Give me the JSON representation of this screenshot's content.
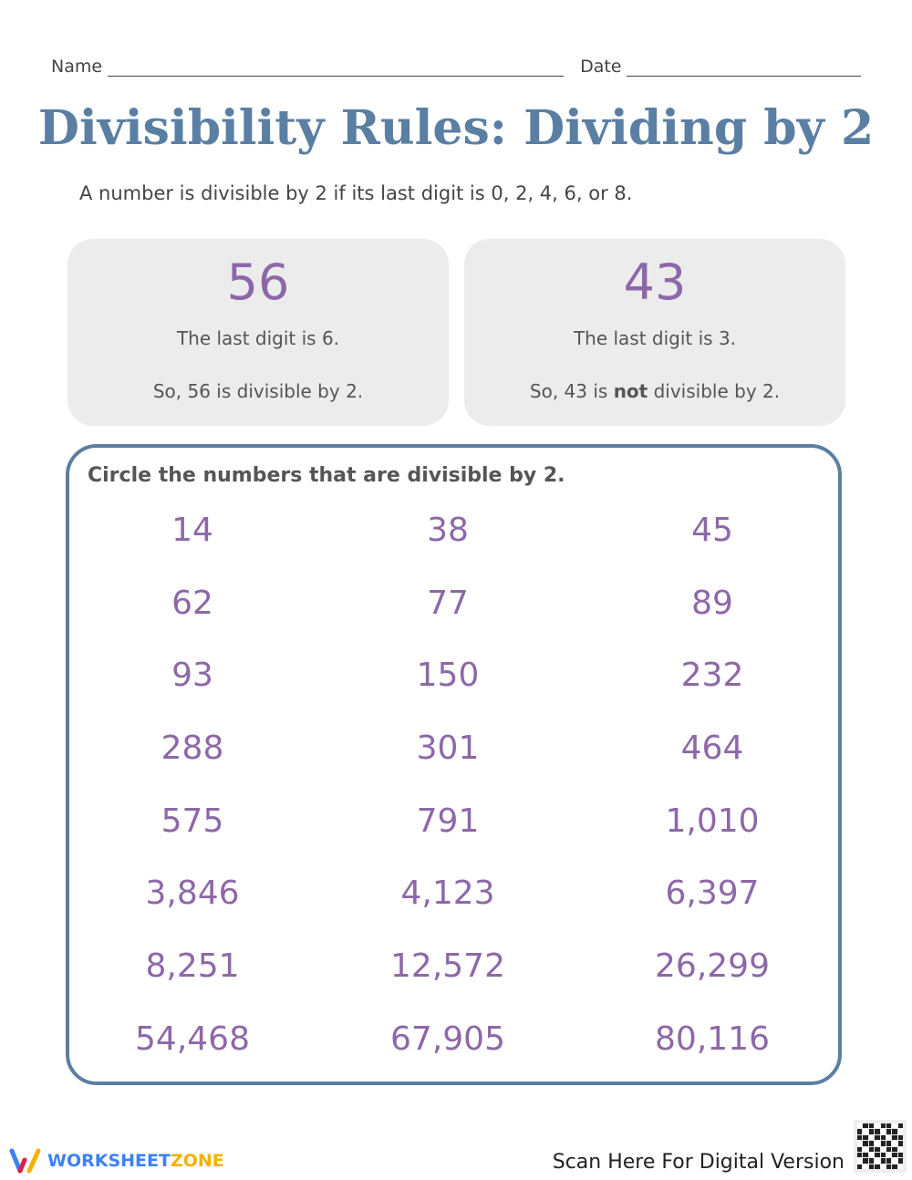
{
  "header": {
    "name_label": "Name",
    "date_label": "Date"
  },
  "title": "Divisibility Rules: Dividing by 2",
  "rule": "A number is divisible by 2 if its last digit is 0, 2, 4, 6, or 8.",
  "examples": [
    {
      "number": "56",
      "line1": "The last digit is 6.",
      "line2_pre": "So, 56 is ",
      "line2_bold": "",
      "line2_post": "divisible by 2."
    },
    {
      "number": "43",
      "line1": "The last digit is 3.",
      "line2_pre": "So, 43 is ",
      "line2_bold": "not",
      "line2_post": " divisible by 2."
    }
  ],
  "exercise": {
    "instruction": "Circle the numbers that are divisible by 2.",
    "numbers": [
      "14",
      "38",
      "45",
      "62",
      "77",
      "89",
      "93",
      "150",
      "232",
      "288",
      "301",
      "464",
      "575",
      "791",
      "1,010",
      "3,846",
      "4,123",
      "6,397",
      "8,251",
      "12,572",
      "26,299",
      "54,468",
      "67,905",
      "80,116"
    ]
  },
  "footer": {
    "logo_a": "WORKSHEET",
    "logo_b": "ZONE",
    "scan": "Scan Here For Digital Version"
  },
  "colors": {
    "title": "#5a7fa2",
    "numbers": "#8d68a8",
    "card": "#ececec"
  }
}
